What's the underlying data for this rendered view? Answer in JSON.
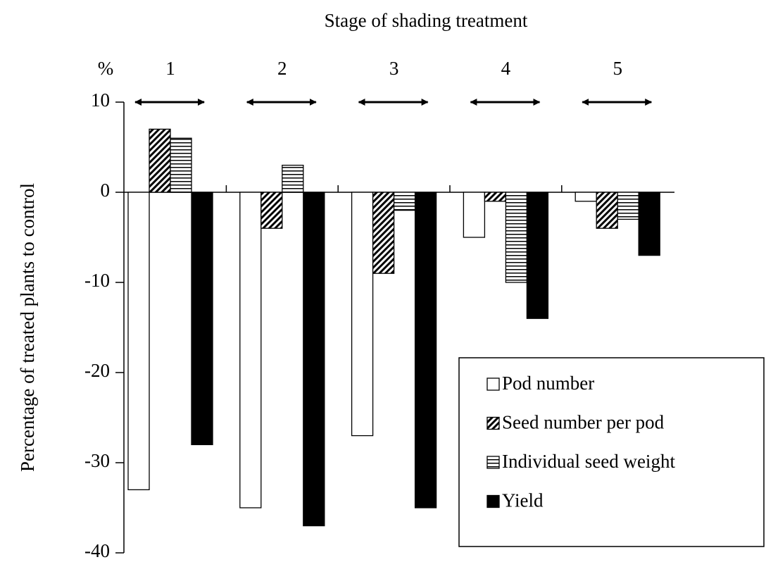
{
  "chart_data": {
    "type": "bar",
    "title": "Stage of shading treatment",
    "y_label": "Percentage  of  treated  plants  to  control",
    "y_unit": "%",
    "categories": [
      "1",
      "2",
      "3",
      "4",
      "5"
    ],
    "series": [
      {
        "name": "Pod number",
        "color": "#ffffff",
        "pattern": "none",
        "values": [
          -33,
          -35,
          -27,
          -5,
          -1
        ]
      },
      {
        "name": "Seed number per pod",
        "color": "#000000",
        "pattern": "diagonal",
        "values": [
          7,
          -4,
          -9,
          -1,
          -4
        ]
      },
      {
        "name": "Individual seed weight",
        "color": "#000000",
        "pattern": "horizontal",
        "values": [
          6,
          3,
          -2,
          -10,
          -3
        ]
      },
      {
        "name": "Yield",
        "color": "#000000",
        "pattern": "solid",
        "values": [
          -28,
          -37,
          -35,
          -14,
          -7
        ]
      }
    ],
    "ylim": [
      -40,
      10
    ],
    "yticks": [
      10,
      0,
      -10,
      -20,
      -30,
      -40
    ],
    "legend": "bottom-right"
  }
}
